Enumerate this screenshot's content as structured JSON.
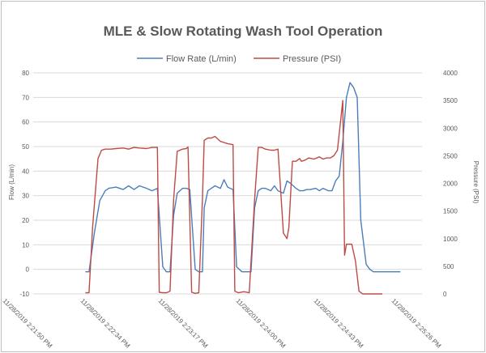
{
  "colors": {
    "flow": "#4a7ebb",
    "pressure": "#be4b48",
    "grid": "#d9d9d9",
    "text": "#595959"
  },
  "chart_data": {
    "type": "line",
    "title": "MLE & Slow Rotating Wash Tool Operation",
    "ylabel": "Flow (L/min)",
    "y2label": "Pressure (PSI)",
    "ylim": [
      -10,
      80
    ],
    "y2lim": [
      0,
      4000
    ],
    "yticks": [
      "-10",
      "0",
      "10",
      "20",
      "30",
      "40",
      "50",
      "60",
      "70",
      "80"
    ],
    "y2ticks": [
      "0",
      "500",
      "1000",
      "1500",
      "2000",
      "2500",
      "3000",
      "3500",
      "4000"
    ],
    "xticks": [
      "11/28/2019 2:21:50 PM",
      "11/28/2019 2:22:34 PM",
      "11/28/2019 2:23:17 PM",
      "11/28/2019 2:24:00 PM",
      "11/28/2019 2:24:43 PM",
      "11/28/2019 2:25:26 PM"
    ],
    "grid": true,
    "legend_position": "top",
    "series": [
      {
        "name": "Flow Rate (L/min)",
        "axis": "left",
        "x": [
          "2:22:19",
          "2:22:21",
          "2:22:24",
          "2:22:27",
          "2:22:30",
          "2:22:32",
          "2:22:36",
          "2:22:40",
          "2:22:43",
          "2:22:46",
          "2:22:49",
          "2:22:53",
          "2:22:56",
          "2:22:59",
          "2:23:02",
          "2:23:04",
          "2:23:06",
          "2:23:08",
          "2:23:10",
          "2:23:13",
          "2:23:15",
          "2:23:17",
          "2:23:20",
          "2:23:22",
          "2:23:24",
          "2:23:25",
          "2:23:27",
          "2:23:29",
          "2:23:31",
          "2:23:34",
          "2:23:36",
          "2:23:38",
          "2:23:41",
          "2:23:43",
          "2:23:46",
          "2:23:48",
          "2:23:51",
          "2:23:53",
          "2:23:55",
          "2:23:57",
          "2:23:59",
          "2:24:02",
          "2:24:04",
          "2:24:06",
          "2:24:09",
          "2:24:11",
          "2:24:13",
          "2:24:16",
          "2:24:18",
          "2:24:20",
          "2:24:22",
          "2:24:24",
          "2:24:27",
          "2:24:29",
          "2:24:31",
          "2:24:34",
          "2:24:36",
          "2:24:38",
          "2:24:40",
          "2:24:42",
          "2:24:44",
          "2:24:46",
          "2:24:48",
          "2:24:50",
          "2:24:52",
          "2:24:55",
          "2:24:57",
          "2:24:59",
          "2:25:01",
          "2:25:04",
          "2:25:06",
          "2:25:08",
          "2:25:10",
          "2:25:12",
          "2:25:14"
        ],
        "values": [
          -1,
          -1,
          15,
          28,
          32,
          33,
          33.5,
          32.5,
          34,
          32.5,
          34,
          33,
          32,
          33,
          1,
          -1,
          -1,
          22,
          31,
          33,
          33,
          32.5,
          0,
          -1,
          -1,
          25,
          32,
          33,
          34,
          33,
          36.5,
          33.5,
          32.5,
          1,
          -1,
          -1,
          -1,
          25,
          32,
          33,
          33,
          32,
          34,
          32,
          31,
          36,
          35,
          33,
          32,
          32,
          32.5,
          32.5,
          33,
          32,
          33,
          32,
          32,
          36,
          38,
          52,
          70,
          76,
          74,
          70,
          20,
          2,
          0,
          -1,
          -1,
          -1,
          -1,
          -1,
          -1,
          -1,
          -1
        ]
      },
      {
        "name": "Pressure (PSI)",
        "axis": "right",
        "x": [
          "2:22:19",
          "2:22:21",
          "2:22:23",
          "2:22:26",
          "2:22:28",
          "2:22:30",
          "2:22:33",
          "2:22:36",
          "2:22:40",
          "2:22:43",
          "2:22:46",
          "2:22:49",
          "2:22:53",
          "2:22:56",
          "2:22:59",
          "2:23:00",
          "2:23:02",
          "2:23:04",
          "2:23:06",
          "2:23:08",
          "2:23:10",
          "2:23:13",
          "2:23:15",
          "2:23:16",
          "2:23:18",
          "2:23:20",
          "2:23:22",
          "2:23:24",
          "2:23:25",
          "2:23:27",
          "2:23:29",
          "2:23:31",
          "2:23:34",
          "2:23:36",
          "2:23:38",
          "2:23:41",
          "2:23:42",
          "2:23:44",
          "2:23:47",
          "2:23:50",
          "2:23:53",
          "2:23:55",
          "2:23:57",
          "2:23:59",
          "2:24:02",
          "2:24:04",
          "2:24:06",
          "2:24:09",
          "2:24:11",
          "2:24:12",
          "2:24:14",
          "2:24:16",
          "2:24:18",
          "2:24:19",
          "2:24:21",
          "2:24:23",
          "2:24:26",
          "2:24:29",
          "2:24:31",
          "2:24:33",
          "2:24:35",
          "2:24:37",
          "2:24:39",
          "2:24:40",
          "2:24:42",
          "2:24:43",
          "2:24:44",
          "2:24:45",
          "2:24:47",
          "2:24:49",
          "2:24:51",
          "2:24:53",
          "2:24:55",
          "2:24:58",
          "2:25:01",
          "2:25:04"
        ],
        "values": [
          20,
          20,
          1200,
          2450,
          2600,
          2620,
          2620,
          2630,
          2640,
          2620,
          2650,
          2640,
          2630,
          2650,
          2650,
          30,
          20,
          20,
          50,
          1700,
          2580,
          2620,
          2630,
          2660,
          30,
          10,
          20,
          1700,
          2780,
          2820,
          2820,
          2850,
          2760,
          2740,
          2720,
          2700,
          50,
          20,
          40,
          20,
          1700,
          2650,
          2650,
          2620,
          2600,
          2600,
          2620,
          1100,
          1000,
          1200,
          2400,
          2400,
          2450,
          2400,
          2420,
          2460,
          2440,
          2480,
          2440,
          2460,
          2460,
          2500,
          2600,
          2900,
          3500,
          700,
          900,
          900,
          900,
          600,
          50,
          0,
          0,
          0,
          0,
          0
        ]
      }
    ]
  }
}
